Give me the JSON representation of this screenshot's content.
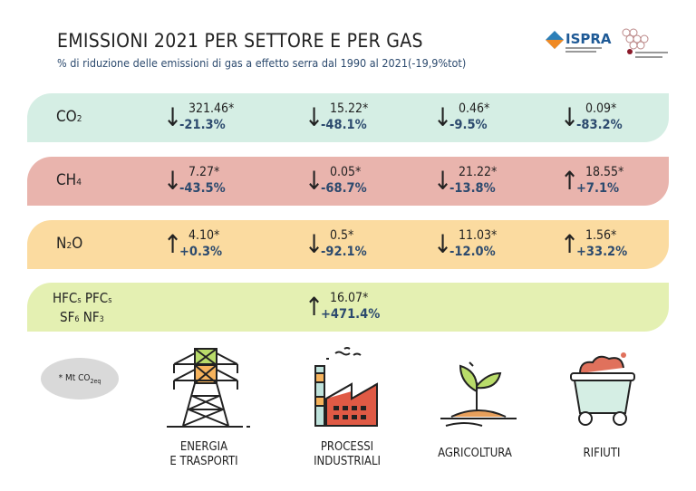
{
  "header": {
    "title": "EMISSIONI 2021 PER SETTORE E PER GAS",
    "subtitle": "% di riduzione delle emissioni di gas a effetto serra dal 1990 al 2021(-19,9%tot)",
    "logo_text": "ISPRA"
  },
  "colors": {
    "co2": "#d5eee4",
    "ch4": "#e9b4ad",
    "n2o": "#fbdba0",
    "fgas": "#e4f0b2",
    "pct": "#2c4a6e"
  },
  "sectors": [
    "ENERGIA\nE TRASPORTI",
    "PROCESSI\nINDUSTRIALI",
    "AGRICOLTURA",
    "RIFIUTI"
  ],
  "rows": [
    {
      "gas": "CO",
      "sub": "2",
      "cells": [
        {
          "dir": "down",
          "value": "321.46*",
          "pct": "-21.3%"
        },
        {
          "dir": "down",
          "value": "15.22*",
          "pct": "-48.1%"
        },
        {
          "dir": "down",
          "value": "0.46*",
          "pct": "-9.5%"
        },
        {
          "dir": "down",
          "value": "0.09*",
          "pct": "-83.2%"
        }
      ]
    },
    {
      "gas": "CH",
      "sub": "4",
      "cells": [
        {
          "dir": "down",
          "value": "7.27*",
          "pct": "-43.5%"
        },
        {
          "dir": "down",
          "value": "0.05*",
          "pct": "-68.7%"
        },
        {
          "dir": "down",
          "value": "21.22*",
          "pct": "-13.8%"
        },
        {
          "dir": "up",
          "value": "18.55*",
          "pct": "+7.1%"
        }
      ]
    },
    {
      "gas": "N",
      "sub": "2",
      "gas2": "O",
      "cells": [
        {
          "dir": "up",
          "value": "4.10*",
          "pct": "+0.3%"
        },
        {
          "dir": "down",
          "value": "0.5*",
          "pct": "-92.1%"
        },
        {
          "dir": "down",
          "value": "11.03*",
          "pct": "-12.0%"
        },
        {
          "dir": "up",
          "value": "1.56*",
          "pct": "+33.2%"
        }
      ]
    }
  ],
  "fgas": {
    "line1a": "HFC",
    "s1": "s",
    "line1b": " PFC",
    "s2": "s",
    "line2a": "SF",
    "s3": "6",
    "line2b": " NF",
    "s4": "3",
    "cell": {
      "dir": "up",
      "value": "16.07*",
      "pct": "+471.4%"
    }
  },
  "legend": {
    "text": "*  Mt CO",
    "sub": "2eq"
  }
}
